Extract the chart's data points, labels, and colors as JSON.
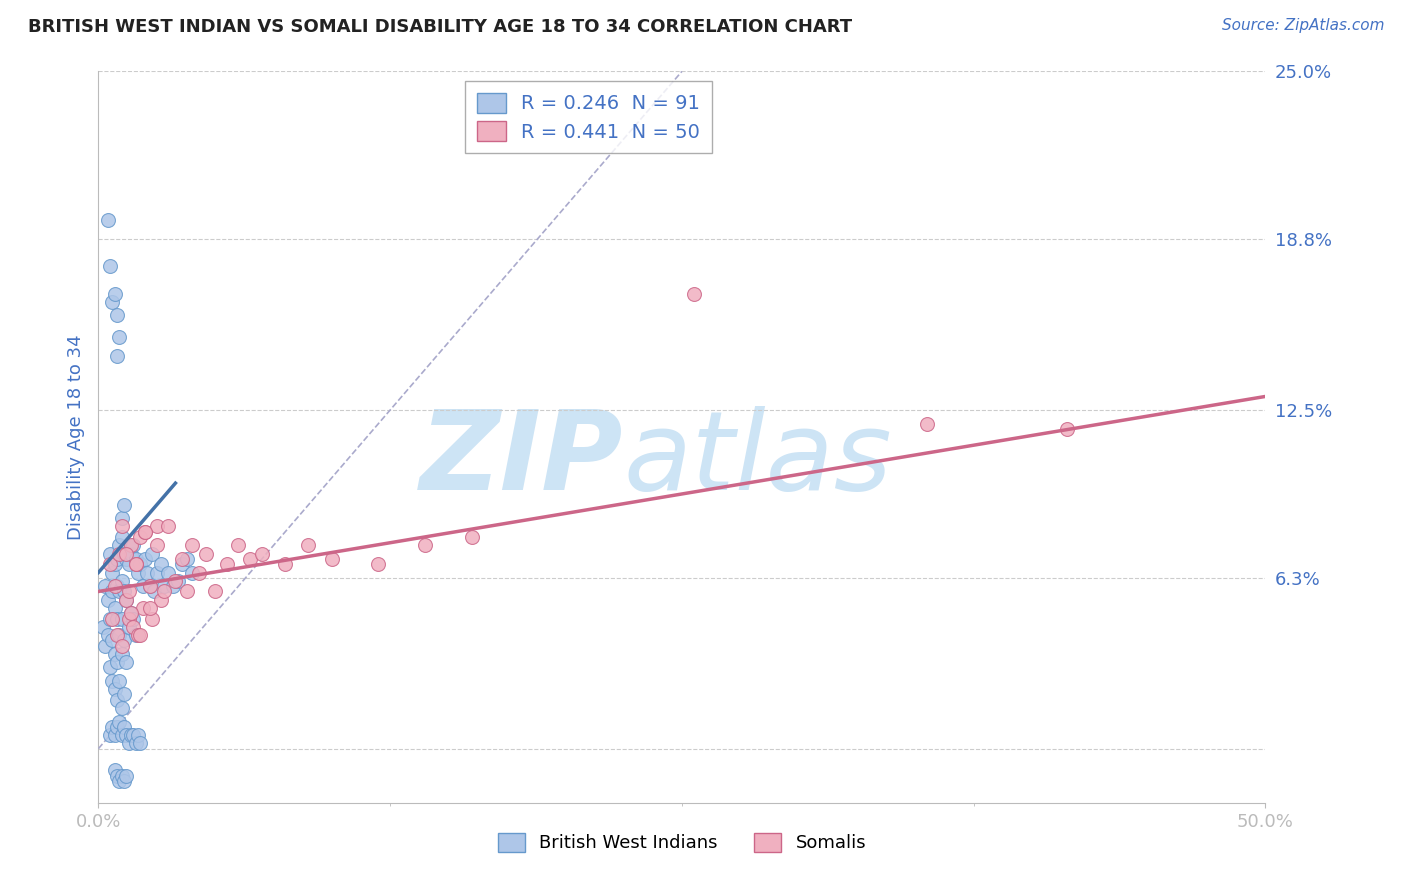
{
  "title": "BRITISH WEST INDIAN VS SOMALI DISABILITY AGE 18 TO 34 CORRELATION CHART",
  "source_text": "Source: ZipAtlas.com",
  "ylabel": "Disability Age 18 to 34",
  "xlim": [
    0.0,
    0.5
  ],
  "ylim": [
    -0.02,
    0.25
  ],
  "ytick_vals": [
    0.0,
    0.063,
    0.125,
    0.188,
    0.25
  ],
  "ytick_labels": [
    "",
    "6.3%",
    "12.5%",
    "18.8%",
    "25.0%"
  ],
  "legend_r1": "R = 0.246",
  "legend_n1": "N = 91",
  "legend_r2": "R = 0.441",
  "legend_n2": "N = 50",
  "color_bwi": "#aec6e8",
  "color_bwi_edge": "#6699cc",
  "color_somali": "#f0b0c0",
  "color_somali_edge": "#cc6688",
  "color_bwi_line": "#4472a8",
  "color_somali_line": "#cc6688",
  "color_ref_line": "#aaaacc",
  "color_grid": "#cccccc",
  "color_blue_text": "#4472c4",
  "color_dark_text": "#333333",
  "color_title": "#222222",
  "watermark_zip": "ZIP",
  "watermark_atlas": "atlas",
  "watermark_color": "#cde4f5",
  "bwi_x": [
    0.002,
    0.003,
    0.003,
    0.004,
    0.004,
    0.005,
    0.005,
    0.005,
    0.006,
    0.006,
    0.006,
    0.006,
    0.007,
    0.007,
    0.007,
    0.007,
    0.008,
    0.008,
    0.008,
    0.008,
    0.008,
    0.009,
    0.009,
    0.009,
    0.009,
    0.01,
    0.01,
    0.01,
    0.01,
    0.01,
    0.011,
    0.011,
    0.011,
    0.011,
    0.012,
    0.012,
    0.012,
    0.013,
    0.013,
    0.014,
    0.014,
    0.015,
    0.015,
    0.016,
    0.016,
    0.017,
    0.018,
    0.019,
    0.02,
    0.021,
    0.022,
    0.023,
    0.024,
    0.025,
    0.027,
    0.028,
    0.03,
    0.032,
    0.034,
    0.036,
    0.038,
    0.04,
    0.005,
    0.006,
    0.007,
    0.007,
    0.008,
    0.008,
    0.009,
    0.009,
    0.01,
    0.01,
    0.011,
    0.011,
    0.012,
    0.012,
    0.013,
    0.014,
    0.015,
    0.016,
    0.017,
    0.018,
    0.004,
    0.005,
    0.006,
    0.007,
    0.008,
    0.008,
    0.009,
    0.01,
    0.011
  ],
  "bwi_y": [
    0.045,
    0.06,
    0.038,
    0.055,
    0.042,
    0.072,
    0.048,
    0.03,
    0.065,
    0.058,
    0.04,
    0.025,
    0.068,
    0.052,
    0.035,
    0.022,
    0.07,
    0.06,
    0.048,
    0.032,
    0.018,
    0.075,
    0.058,
    0.042,
    0.025,
    0.078,
    0.062,
    0.048,
    0.035,
    0.015,
    0.072,
    0.058,
    0.04,
    0.02,
    0.07,
    0.055,
    0.032,
    0.068,
    0.045,
    0.072,
    0.05,
    0.075,
    0.048,
    0.07,
    0.042,
    0.065,
    0.068,
    0.06,
    0.07,
    0.065,
    0.06,
    0.072,
    0.058,
    0.065,
    0.068,
    0.06,
    0.065,
    0.06,
    0.062,
    0.068,
    0.07,
    0.065,
    0.005,
    0.008,
    0.005,
    -0.008,
    0.008,
    -0.01,
    0.01,
    -0.012,
    0.005,
    -0.01,
    0.008,
    -0.012,
    0.005,
    -0.01,
    0.002,
    0.005,
    0.005,
    0.002,
    0.005,
    0.002,
    0.195,
    0.178,
    0.165,
    0.168,
    0.16,
    0.145,
    0.152,
    0.085,
    0.09
  ],
  "somali_x": [
    0.005,
    0.006,
    0.007,
    0.008,
    0.009,
    0.01,
    0.01,
    0.012,
    0.013,
    0.014,
    0.015,
    0.016,
    0.017,
    0.018,
    0.019,
    0.02,
    0.022,
    0.023,
    0.025,
    0.027,
    0.012,
    0.013,
    0.014,
    0.016,
    0.018,
    0.02,
    0.022,
    0.025,
    0.028,
    0.03,
    0.033,
    0.036,
    0.038,
    0.04,
    0.043,
    0.046,
    0.05,
    0.055,
    0.06,
    0.065,
    0.07,
    0.08,
    0.09,
    0.1,
    0.12,
    0.14,
    0.16,
    0.355,
    0.415,
    0.255
  ],
  "somali_y": [
    0.068,
    0.048,
    0.06,
    0.042,
    0.072,
    0.038,
    0.082,
    0.055,
    0.048,
    0.075,
    0.045,
    0.068,
    0.042,
    0.078,
    0.052,
    0.08,
    0.06,
    0.048,
    0.082,
    0.055,
    0.072,
    0.058,
    0.05,
    0.068,
    0.042,
    0.08,
    0.052,
    0.075,
    0.058,
    0.082,
    0.062,
    0.07,
    0.058,
    0.075,
    0.065,
    0.072,
    0.058,
    0.068,
    0.075,
    0.07,
    0.072,
    0.068,
    0.075,
    0.07,
    0.068,
    0.075,
    0.078,
    0.12,
    0.118,
    0.168
  ],
  "bwi_line_x": [
    0.0,
    0.033
  ],
  "bwi_line_y": [
    0.065,
    0.098
  ],
  "somali_line_x": [
    0.0,
    0.5
  ],
  "somali_line_y": [
    0.058,
    0.13
  ],
  "ref_line_x": [
    0.0,
    0.25
  ],
  "ref_line_y": [
    0.0,
    0.25
  ]
}
